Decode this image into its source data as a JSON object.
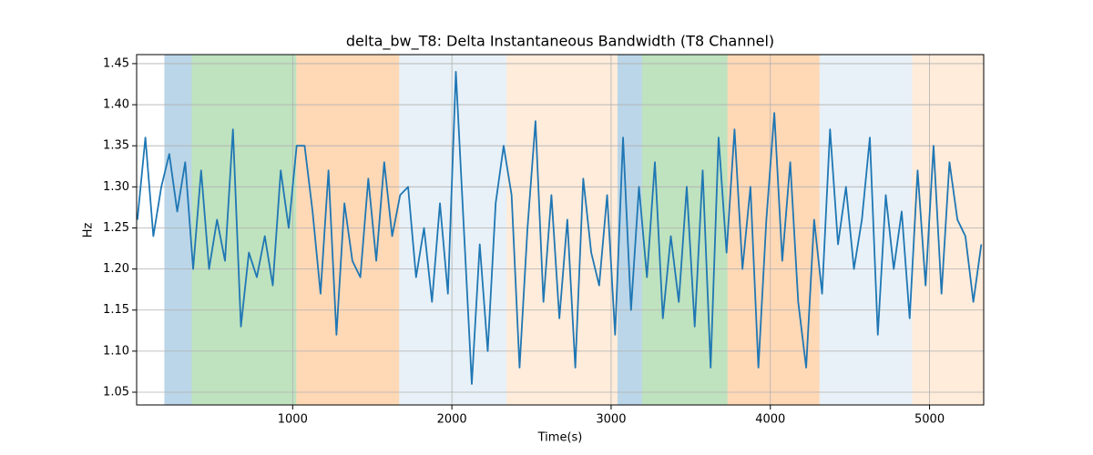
{
  "chart_data": {
    "type": "line",
    "title": "delta_bw_T8: Delta Instantaneous Bandwidth (T8 Channel)",
    "x_label": "Time(s)",
    "y_label": "Hz",
    "x": [
      25,
      75,
      125,
      175,
      225,
      275,
      325,
      375,
      425,
      475,
      525,
      575,
      625,
      675,
      725,
      775,
      825,
      875,
      925,
      975,
      1025,
      1075,
      1125,
      1175,
      1225,
      1275,
      1325,
      1375,
      1425,
      1475,
      1525,
      1575,
      1625,
      1675,
      1725,
      1775,
      1825,
      1875,
      1925,
      1975,
      2025,
      2075,
      2125,
      2175,
      2225,
      2275,
      2325,
      2375,
      2425,
      2475,
      2525,
      2575,
      2625,
      2675,
      2725,
      2775,
      2825,
      2875,
      2925,
      2975,
      3025,
      3075,
      3125,
      3175,
      3225,
      3275,
      3325,
      3375,
      3425,
      3475,
      3525,
      3575,
      3625,
      3675,
      3725,
      3775,
      3825,
      3875,
      3925,
      3975,
      4025,
      4075,
      4125,
      4175,
      4225,
      4275,
      4325,
      4375,
      4425,
      4475,
      4525,
      4575,
      4625,
      4675,
      4725,
      4775,
      4825,
      4875,
      4925,
      4975,
      5025,
      5075,
      5125,
      5175,
      5225,
      5275,
      5325
    ],
    "series": [
      {
        "name": "delta_bw_T8",
        "color": "#1f77b4",
        "values": [
          1.26,
          1.36,
          1.24,
          1.3,
          1.34,
          1.27,
          1.33,
          1.2,
          1.32,
          1.2,
          1.26,
          1.21,
          1.37,
          1.13,
          1.22,
          1.19,
          1.24,
          1.18,
          1.32,
          1.25,
          1.35,
          1.35,
          1.27,
          1.17,
          1.32,
          1.12,
          1.28,
          1.21,
          1.19,
          1.31,
          1.21,
          1.33,
          1.24,
          1.29,
          1.3,
          1.19,
          1.25,
          1.16,
          1.28,
          1.17,
          1.44,
          1.25,
          1.06,
          1.23,
          1.1,
          1.28,
          1.35,
          1.29,
          1.08,
          1.25,
          1.38,
          1.16,
          1.29,
          1.14,
          1.26,
          1.08,
          1.31,
          1.22,
          1.18,
          1.29,
          1.12,
          1.36,
          1.15,
          1.3,
          1.19,
          1.33,
          1.14,
          1.24,
          1.16,
          1.3,
          1.13,
          1.32,
          1.08,
          1.36,
          1.22,
          1.37,
          1.2,
          1.3,
          1.08,
          1.26,
          1.39,
          1.21,
          1.33,
          1.16,
          1.08,
          1.26,
          1.17,
          1.37,
          1.23,
          1.3,
          1.2,
          1.26,
          1.36,
          1.12,
          1.29,
          1.2,
          1.27,
          1.14,
          1.32,
          1.18,
          1.35,
          1.17,
          1.33,
          1.26,
          1.24,
          1.16,
          1.23
        ]
      }
    ],
    "regions": [
      {
        "start": 194,
        "end": 366,
        "color": "#1f77b4",
        "opacity": 0.3
      },
      {
        "start": 366,
        "end": 1023,
        "color": "#2ca02c",
        "opacity": 0.3
      },
      {
        "start": 1023,
        "end": 1669,
        "color": "#ff7f0e",
        "opacity": 0.3
      },
      {
        "start": 1669,
        "end": 2343,
        "color": "#1f77b4",
        "opacity": 0.1
      },
      {
        "start": 2343,
        "end": 3040,
        "color": "#ff7f0e",
        "opacity": 0.15
      },
      {
        "start": 3040,
        "end": 3194,
        "color": "#1f77b4",
        "opacity": 0.3
      },
      {
        "start": 3194,
        "end": 3731,
        "color": "#2ca02c",
        "opacity": 0.3
      },
      {
        "start": 3731,
        "end": 4309,
        "color": "#ff7f0e",
        "opacity": 0.3
      },
      {
        "start": 4309,
        "end": 4891,
        "color": "#1f77b4",
        "opacity": 0.1
      },
      {
        "start": 4891,
        "end": 5340,
        "color": "#ff7f0e",
        "opacity": 0.15
      }
    ],
    "xlim": [
      20,
      5340
    ],
    "ylim": [
      1.0345,
      1.461
    ],
    "xticks": [
      1000,
      2000,
      3000,
      4000,
      5000
    ],
    "yticks": [
      1.05,
      {
        "value": 1.1,
        "label": "1.10"
      },
      1.15,
      {
        "value": 1.2,
        "label": "1.20"
      },
      1.25,
      {
        "value": 1.3,
        "label": "1.30"
      },
      1.35,
      {
        "value": 1.4,
        "label": "1.40"
      },
      1.45
    ],
    "grid": true
  }
}
